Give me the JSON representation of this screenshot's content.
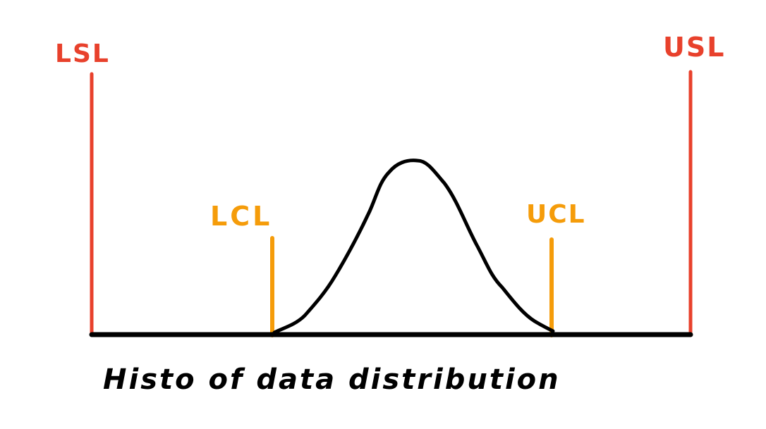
{
  "diagram": {
    "caption": "Histo of data distribution",
    "labels": {
      "lsl": "LSL",
      "usl": "USL",
      "lcl": "LCL",
      "ucl": "UCL"
    },
    "colors": {
      "spec_limit": "#e8412c",
      "control_limit": "#f59c0a",
      "curve": "#000000",
      "baseline": "#000000",
      "caption": "#000000"
    }
  }
}
